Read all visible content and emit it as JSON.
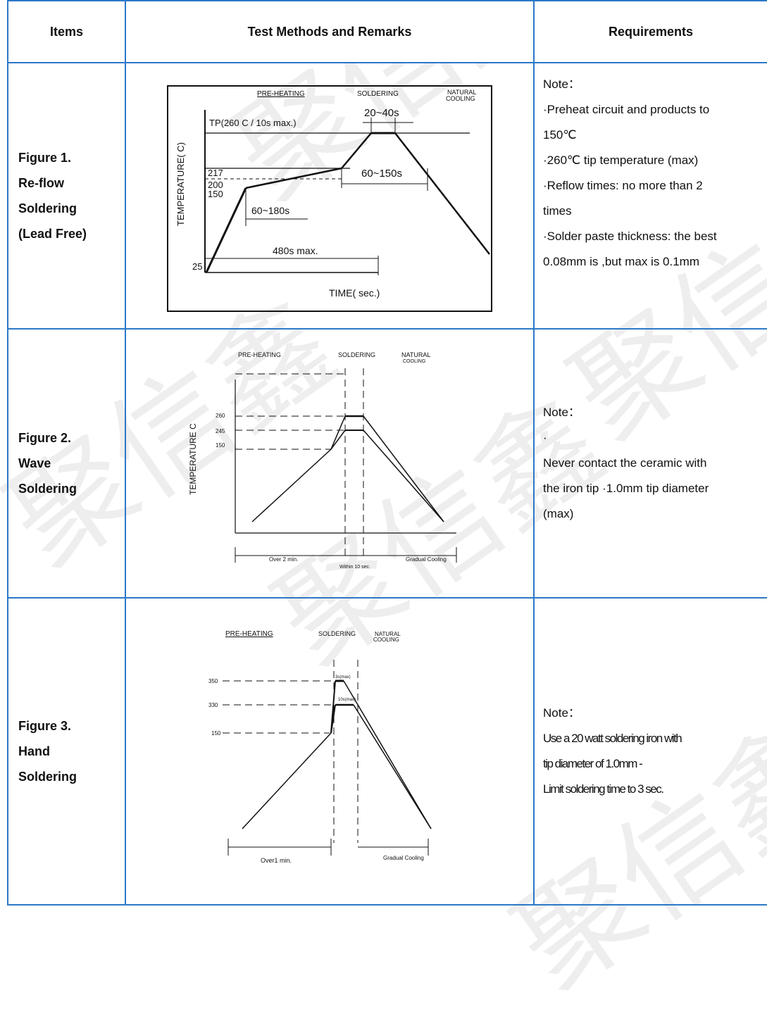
{
  "table": {
    "headers": [
      "Items",
      "Test Methods and Remarks",
      "Requirements"
    ]
  },
  "rows": [
    {
      "item_lines": [
        "Figure 1.",
        "Re-flow",
        "Soldering",
        "(Lead Free)"
      ],
      "requirements": [
        "Note：",
        "·Preheat circuit and products to",
        "150℃",
        "·260℃ tip temperature (max)",
        "·Reflow times: no more than 2",
        "times",
        "·Solder paste thickness: the best",
        "0.08mm is ,but max is 0.1mm"
      ],
      "figure": {
        "labels": {
          "pre_heating": "PRE-HEATING",
          "soldering": "SOLDERING",
          "natural": "NATURAL",
          "cooling": "COOLING",
          "dur_top": "20~40s",
          "tp": "TP(260 C / 10s max.)",
          "y_axis": "TEMPERATURE( C)",
          "t217": "217",
          "t200": "200",
          "t150": "150",
          "t25": "25",
          "dur_mid": "60~150s",
          "dur_pre": "60~180s",
          "dur_total": "480s max.",
          "x_axis": "TIME( sec.)"
        }
      }
    },
    {
      "item_lines": [
        "Figure 2.",
        "Wave",
        "Soldering"
      ],
      "requirements": [
        "Note：",
        "·",
        "Never contact the ceramic with",
        "the iron tip    ·1.0mm tip diameter",
        "(max)"
      ],
      "figure": {
        "labels": {
          "pre_heating": "PRE-HEATING",
          "soldering": "SOLDERING",
          "natural": "NATURAL",
          "cooling": "COOLING",
          "y_axis": "TEMPERATURE C",
          "t260": "260",
          "t245": "245",
          "t150": "150",
          "over": "Over 2 min.",
          "within": "Within 10 sec.",
          "gradual": "Gradual Cooling"
        }
      }
    },
    {
      "item_lines": [
        "Figure 3.",
        "Hand",
        "Soldering"
      ],
      "requirements": [
        "Note：",
        "Use a 20 watt soldering iron with",
        "tip diameter of 1.0mm  -",
        "Limit soldering time to 3 sec."
      ],
      "figure": {
        "labels": {
          "pre_heating": "PRE-HEATING",
          "soldering": "SOLDERING",
          "natural": "NATURAL",
          "cooling": "COOLING",
          "t350": "350",
          "t330": "330",
          "t150": "150",
          "t3s": "3s(max)",
          "t10s": "10s(max)",
          "over": "Over1 min.",
          "gradual": "Gradual Cooling"
        }
      }
    }
  ],
  "watermark": "聚信鑫"
}
